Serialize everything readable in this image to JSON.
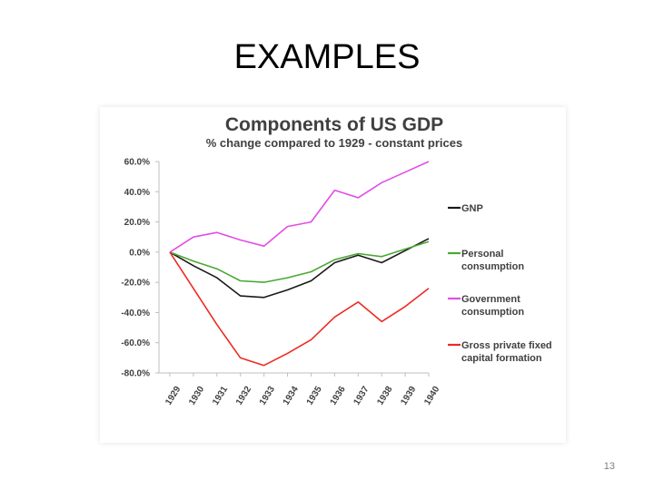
{
  "slide": {
    "title": "EXAMPLES",
    "page_number": "13"
  },
  "chart_data": {
    "type": "line",
    "title": "Components of US GDP",
    "subtitle": "% change compared to 1929 - constant prices",
    "x": [
      "1929",
      "1930",
      "1931",
      "1932",
      "1933",
      "1934",
      "1935",
      "1936",
      "1937",
      "1938",
      "1939",
      "1940"
    ],
    "ylim": [
      -80,
      60
    ],
    "yticks": [
      -80,
      -60,
      -40,
      -20,
      0,
      20,
      40,
      60
    ],
    "ytick_labels": [
      "-80.0%",
      "-60.0%",
      "-40.0%",
      "-20.0%",
      "0.0%",
      "20.0%",
      "40.0%",
      "60.0%"
    ],
    "grid": false,
    "legend_position": "right",
    "series": [
      {
        "name": "GNP",
        "label_lines": [
          "GNP"
        ],
        "color": "#1a1a1a",
        "values": [
          0,
          -9,
          -17,
          -29,
          -30,
          -25,
          -19,
          -7,
          -2,
          -7,
          1,
          9
        ]
      },
      {
        "name": "Personal consumption",
        "label_lines": [
          "Personal",
          "consumption"
        ],
        "color": "#4aa832",
        "values": [
          0,
          -6,
          -11,
          -19,
          -20,
          -17,
          -13,
          -5,
          -1,
          -3,
          2,
          7
        ]
      },
      {
        "name": "Government consumption",
        "label_lines": [
          "Government",
          "consumption"
        ],
        "color": "#e14ee6",
        "values": [
          0,
          10,
          13,
          8,
          4,
          17,
          20,
          41,
          36,
          46,
          53,
          60
        ]
      },
      {
        "name": "Gross private fixed capital formation",
        "label_lines": [
          "Gross private fixed",
          "capital formation"
        ],
        "color": "#ee2a24",
        "values": [
          0,
          -24,
          -48,
          -70,
          -75,
          -67,
          -58,
          -43,
          -33,
          -46,
          -36,
          -24
        ]
      }
    ]
  }
}
